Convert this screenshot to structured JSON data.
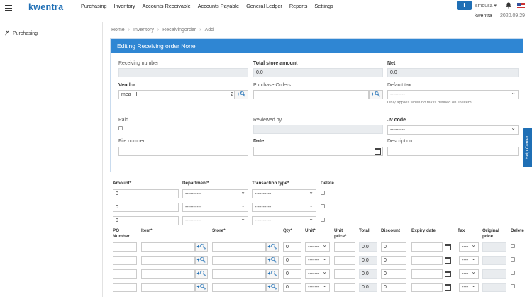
{
  "app": {
    "logo": "kwentra",
    "user": "smousa",
    "brand": "kwentra",
    "date": "2020.09.29",
    "info_icon": "info-icon",
    "accent": "#1f6fb5"
  },
  "nav": [
    "Purchasing",
    "Inventory",
    "Accounts Receivable",
    "Accounts Payable",
    "General Ledger",
    "Reports",
    "Settings"
  ],
  "sidebar": {
    "item": "Purchasing"
  },
  "breadcrumb": [
    "Home",
    "Inventory",
    "Receivingorder",
    "Add"
  ],
  "panel": {
    "title": "Editing Receiving order None"
  },
  "form": {
    "receiving_number_label": "Receiving number",
    "total_store_label": "Total store amount",
    "total_store_value": "0.0",
    "net_label": "Net",
    "net_value": "0.0",
    "vendor_label": "Vendor",
    "vendor_value": "mea",
    "vendor_count": "2",
    "purchase_orders_label": "Purchase Orders",
    "default_tax_label": "Default tax",
    "default_tax_value": "---------",
    "default_tax_hint": "Only applies when no tax is defined on lineitem",
    "paid_label": "Paid",
    "reviewed_by_label": "Reviewed by",
    "jv_code_label": "Jv code",
    "jv_code_value": "---------",
    "file_number_label": "File number",
    "date_label": "Date",
    "description_label": "Description"
  },
  "help": "Help Center",
  "amounts": {
    "headers": {
      "amount": "Amount*",
      "department": "Department*",
      "transaction_type": "Transaction type*",
      "delete": "Delete"
    },
    "rows": [
      {
        "amount": "0",
        "department": "----------",
        "transaction": "----------"
      },
      {
        "amount": "0",
        "department": "----------",
        "transaction": "----------"
      },
      {
        "amount": "0",
        "department": "----------",
        "transaction": "----------"
      }
    ]
  },
  "items": {
    "headers": {
      "po_number": "PO Number",
      "item": "Item*",
      "store": "Store*",
      "qty": "Qty*",
      "unit": "Unit*",
      "unit_price": "Unit price*",
      "total": "Total",
      "discount": "Discount",
      "expiry": "Expiry date",
      "tax": "Tax",
      "original_price": "Original price",
      "delete": "Delete"
    },
    "rows": [
      {
        "qty": "0",
        "unit": "-------",
        "total": "0.0",
        "discount": "0",
        "tax": "----"
      },
      {
        "qty": "0",
        "unit": "-------",
        "total": "0.0",
        "discount": "0",
        "tax": "----"
      },
      {
        "qty": "0",
        "unit": "-------",
        "total": "0.0",
        "discount": "0",
        "tax": "----"
      },
      {
        "qty": "0",
        "unit": "-------",
        "total": "0.0",
        "discount": "0",
        "tax": "----"
      }
    ]
  }
}
